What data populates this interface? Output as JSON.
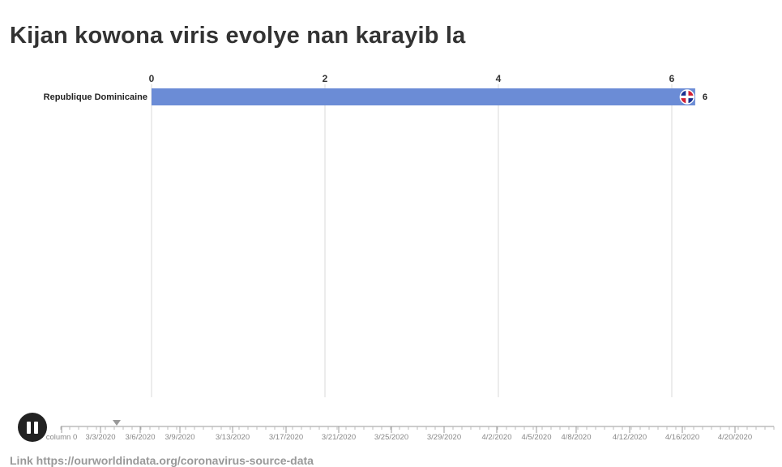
{
  "title": "Kijan kowona viris evolye nan karayib la",
  "source_link": "Link https://ourworldindata.org/coronavirus-source-data",
  "colors": {
    "bar": "#6b8cd6",
    "grid": "#d8d8d8",
    "timeline": "#999999"
  },
  "playback": {
    "state": "playing",
    "control_icon": "pause-icon"
  },
  "timeline": {
    "labels": [
      "column 0",
      "3/3/2020",
      "3/6/2020",
      "3/9/2020",
      "3/13/2020",
      "3/17/2020",
      "3/21/2020",
      "3/25/2020",
      "3/29/2020",
      "4/2/2020",
      "4/5/2020",
      "4/8/2020",
      "4/12/2020",
      "4/16/2020",
      "4/20/2020"
    ],
    "current_marker_after": "3/3/2020"
  },
  "chart_data": {
    "type": "bar",
    "orientation": "horizontal",
    "title": "Kijan kowona viris evolye nan karayib la",
    "categories": [
      "Republique Dominicaine"
    ],
    "values": [
      6
    ],
    "value_labels": [
      "6"
    ],
    "flags": [
      "dominican-republic-flag"
    ],
    "x_ticks": [
      0,
      2,
      4,
      6
    ],
    "xlim": [
      0,
      6.2
    ],
    "grid": true,
    "xlabel": "",
    "ylabel": ""
  }
}
